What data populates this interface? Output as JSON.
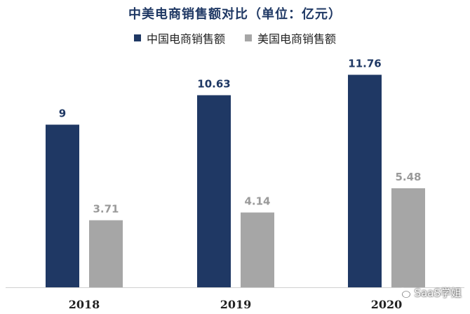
{
  "chart_data": {
    "type": "bar",
    "title": "中美电商销售额对比（单位：亿元）",
    "categories": [
      "2018",
      "2019",
      "2020"
    ],
    "series": [
      {
        "name": "中国电商销售额",
        "color": "#1f3864",
        "values": [
          9,
          10.63,
          11.76
        ]
      },
      {
        "name": "美国电商销售额",
        "color": "#a6a6a6",
        "values": [
          3.71,
          4.14,
          5.48
        ]
      }
    ],
    "value_labels": [
      [
        "9",
        "10.63",
        "11.76"
      ],
      [
        "3.71",
        "4.14",
        "5.48"
      ]
    ],
    "ylim": [
      0,
      12.4
    ],
    "grid": false,
    "legend_position": "top-center"
  },
  "watermark": {
    "text": "SaaS学姐",
    "icon": "wechat-icon"
  }
}
